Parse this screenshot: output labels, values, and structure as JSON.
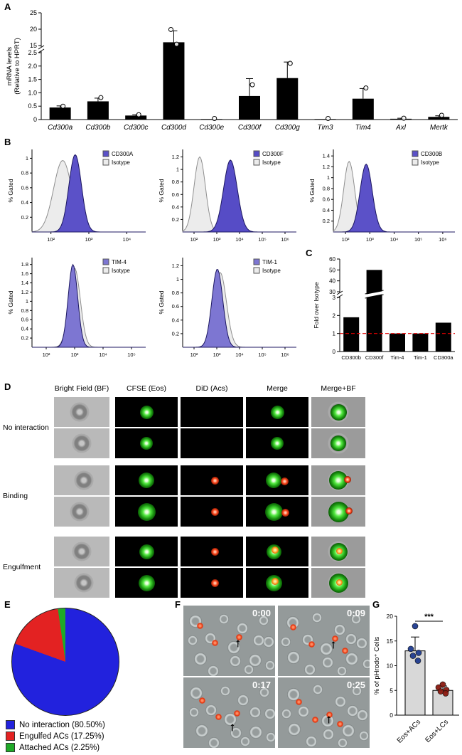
{
  "panels": {
    "A": "A",
    "B": "B",
    "C": "C",
    "D": "D",
    "E": "E",
    "F": "F",
    "G": "G"
  },
  "chart_data": [
    {
      "id": "A",
      "type": "bar",
      "ylabel_lines": [
        "mRNA levels",
        "(Relative to HPRT)"
      ],
      "categories": [
        "Cd300a",
        "Cd300b",
        "Cd300c",
        "Cd300d",
        "Cd300e",
        "Cd300f",
        "Cd300g",
        "Tim3",
        "Tim4",
        "Axl",
        "Mertk"
      ],
      "values": [
        0.45,
        0.68,
        0.15,
        16,
        0.02,
        0.88,
        1.55,
        0.02,
        0.78,
        0.03,
        0.1
      ],
      "errors": [
        0.06,
        0.12,
        0.03,
        3.5,
        0,
        0.65,
        0.6,
        0,
        0.38,
        0.02,
        0.04
      ],
      "points": [
        [
          0.5
        ],
        [
          0.82
        ],
        [
          0.18
        ],
        [
          15.4,
          19.9
        ],
        [
          0.04
        ],
        [
          1.3
        ],
        [
          2.1
        ],
        [
          0.04
        ],
        [
          1.18
        ],
        [
          0.05
        ],
        [
          0.16
        ]
      ],
      "yticks_lower": [
        "0",
        "0.5",
        "1.0",
        "1.5",
        "2.0",
        "2.5"
      ],
      "yticks_upper": [
        "15",
        "20",
        "25"
      ],
      "lower_max": 2.5,
      "upper_min": 15,
      "upper_max": 25,
      "axis_break": true,
      "bar_color": "#000000"
    },
    {
      "id": "B1",
      "type": "histogram",
      "legend": [
        "CD300A",
        "Isotype"
      ],
      "ylabel": "% Gated",
      "yticks": [
        "0.2",
        "0.4",
        "0.6",
        "0.8",
        "1"
      ],
      "ymax": 1.12,
      "xticks": [
        "10²",
        "10³",
        "10⁴"
      ],
      "series": [
        {
          "name": "Isotype",
          "fill": "#ececec",
          "stroke": "#8f8f8f",
          "center": 0.27,
          "sigma": 0.08,
          "height": 0.97
        },
        {
          "name": "CD300A",
          "fill": "#5b51c8",
          "stroke": "#1c1760",
          "center": 0.38,
          "sigma": 0.055,
          "height": 1.05
        }
      ]
    },
    {
      "id": "B2",
      "type": "histogram",
      "legend": [
        "CD300F",
        "Isotype"
      ],
      "ylabel": "% Gated",
      "yticks": [
        "0.2",
        "0.4",
        "0.6",
        "0.8",
        "1",
        "1.2"
      ],
      "ymax": 1.32,
      "xticks": [
        "10²",
        "10³",
        "10⁴",
        "10⁵",
        "10⁶"
      ],
      "series": [
        {
          "name": "Isotype",
          "fill": "#ececec",
          "stroke": "#8f8f8f",
          "center": 0.15,
          "sigma": 0.05,
          "height": 1.2
        },
        {
          "name": "CD300F",
          "fill": "#564cc6",
          "stroke": "#1c1760",
          "center": 0.42,
          "sigma": 0.06,
          "height": 1.15
        }
      ]
    },
    {
      "id": "B3",
      "type": "histogram",
      "legend": [
        "CD300B",
        "Isotype"
      ],
      "ylabel": "% Gated",
      "yticks": [
        "0.2",
        "0.4",
        "0.6",
        "0.8",
        "1",
        "1.2",
        "1.4"
      ],
      "ymax": 1.52,
      "xticks": [
        "10²",
        "10³",
        "10⁴",
        "10⁵",
        "10⁶"
      ],
      "series": [
        {
          "name": "Isotype",
          "fill": "#ececec",
          "stroke": "#8f8f8f",
          "center": 0.13,
          "sigma": 0.045,
          "height": 1.3
        },
        {
          "name": "CD300B",
          "fill": "#5b51c8",
          "stroke": "#1c1760",
          "center": 0.27,
          "sigma": 0.05,
          "height": 1.25
        }
      ]
    },
    {
      "id": "B4",
      "type": "histogram",
      "legend": [
        "TIM-4",
        "Isotype"
      ],
      "ylabel": "% Gated",
      "yticks": [
        "0.2",
        "0.4",
        "0.6",
        "0.8",
        "1",
        "1.2",
        "1.4",
        "1.6",
        "1.8"
      ],
      "ymax": 1.95,
      "xticks": [
        "10²",
        "10³",
        "10⁴",
        "10⁵"
      ],
      "series": [
        {
          "name": "Isotype",
          "fill": "#ececec",
          "stroke": "#8f8f8f",
          "center": 0.375,
          "sigma": 0.05,
          "height": 1.72
        },
        {
          "name": "TIM-4",
          "fill": "#7d76d2",
          "stroke": "#1c1760",
          "center": 0.36,
          "sigma": 0.042,
          "height": 1.8
        }
      ]
    },
    {
      "id": "B5",
      "type": "histogram",
      "legend": [
        "TIM-1",
        "Isotype"
      ],
      "ylabel": "% Gated",
      "yticks": [
        "0.2",
        "0.4",
        "0.6",
        "0.8",
        "1",
        "1.2"
      ],
      "ymax": 1.32,
      "xticks": [
        "10²",
        "10³",
        "10⁴",
        "10⁵",
        "10⁶"
      ],
      "series": [
        {
          "name": "Isotype",
          "fill": "#ececec",
          "stroke": "#8f8f8f",
          "center": 0.33,
          "sigma": 0.055,
          "height": 1.1
        },
        {
          "name": "TIM-1",
          "fill": "#7d76d2",
          "stroke": "#1c1760",
          "center": 0.305,
          "sigma": 0.048,
          "height": 1.15
        }
      ]
    },
    {
      "id": "C",
      "type": "bar",
      "ylabel": "Fold over Isotype",
      "categories": [
        "CD300b",
        "CD300f",
        "Tim-4",
        "Tim-1",
        "CD300a"
      ],
      "values": [
        1.9,
        50,
        1,
        1,
        1.6
      ],
      "yticks_lower": [
        "0",
        "1",
        "2",
        "3"
      ],
      "yticks_upper": [
        "30",
        "40",
        "50",
        "60"
      ],
      "lower_max": 3,
      "upper_min": 30,
      "upper_max": 60,
      "axis_break": true,
      "refline": 1,
      "refline_color": "#e00000",
      "bar_color": "#000000"
    },
    {
      "id": "E",
      "type": "pie",
      "slices": [
        {
          "label": "No interaction (80.50%)",
          "value": 80.5,
          "color": "#2222dd"
        },
        {
          "label": "Engulfed ACs (17.25%)",
          "value": 17.25,
          "color": "#e32222"
        },
        {
          "label": "Attached ACs (2.25%)",
          "value": 2.25,
          "color": "#1faa28"
        }
      ]
    },
    {
      "id": "G",
      "type": "bar",
      "ylabel": "% of pHrodo⁺ Cells",
      "categories": [
        "Eos+ACs",
        "Eos+LCs"
      ],
      "values": [
        13,
        5
      ],
      "errors": [
        2.8,
        0.9
      ],
      "yticks": [
        "0",
        "5",
        "10",
        "15",
        "20"
      ],
      "ymax": 20,
      "points": [
        [
          18,
          13.4,
          12.6,
          12,
          11
        ],
        [
          6.2,
          5.6,
          5.1,
          4.8,
          4.4
        ]
      ],
      "point_colors": [
        "#1f3b8f",
        "#8b1a10"
      ],
      "bar_color": "#d8d8d8",
      "significance": "***"
    }
  ],
  "panelD": {
    "col_headers": [
      "Bright Field (BF)",
      "CFSE (Eos)",
      "DiD (Acs)",
      "Merge",
      "Merge+BF"
    ],
    "row_groups": [
      {
        "label": "No interaction",
        "rows": 2,
        "did_dot": false,
        "engulfed": false
      },
      {
        "label": "Binding",
        "rows": 2,
        "did_dot": true,
        "engulfed": false
      },
      {
        "label": "Engulfment",
        "rows": 2,
        "did_dot": true,
        "engulfed": true
      }
    ]
  },
  "panelF": {
    "timestamps": [
      "0:00",
      "0:09",
      "0:17",
      "0:25"
    ]
  }
}
